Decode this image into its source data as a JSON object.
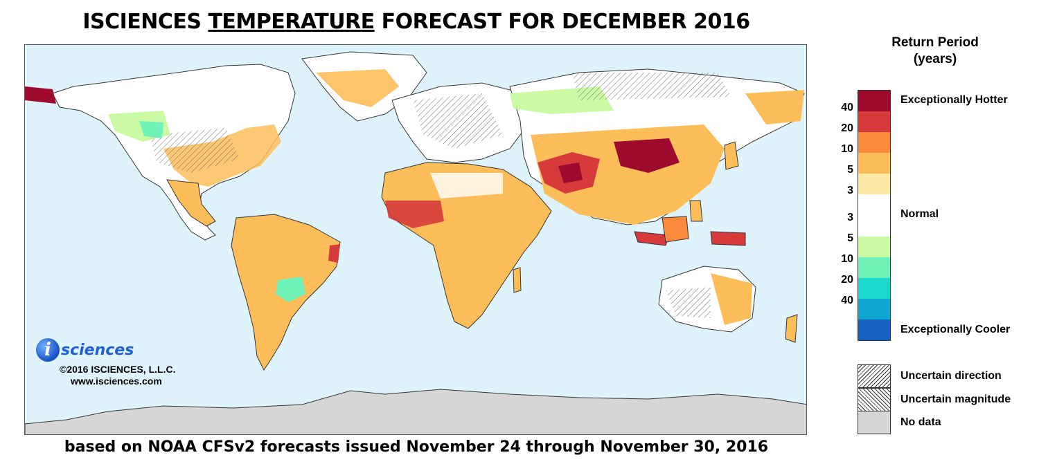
{
  "title": {
    "prefix": "ISCIENCES ",
    "emphasis": "TEMPERATURE",
    "suffix": " FORECAST FOR DECEMBER 2016"
  },
  "footer": "based on NOAA CFSv2 forecasts issued November 24 through November 30, 2016",
  "brand": {
    "logo_letter": "i",
    "logo_word": "sciences",
    "copyright": "©2016 ISCIENCES, L.L.C.",
    "url": "www.isciences.com"
  },
  "legend": {
    "title_line1": "Return Period",
    "title_line2": "(years)",
    "colors": [
      "#9e0a2e",
      "#d63a3a",
      "#fb8a3c",
      "#fdbe5a",
      "#fde8a6",
      "#ffffff",
      "#ffffff",
      "#cafaa4",
      "#6ef2b8",
      "#18d9cc",
      "#0ea6cf",
      "#1660c2"
    ],
    "ticks": [
      "40",
      "20",
      "10",
      "5",
      "3",
      "3",
      "5",
      "10",
      "20",
      "40"
    ],
    "label_hotter": "Exceptionally Hotter",
    "label_normal": "Normal",
    "label_cooler": "Exceptionally Cooler",
    "label_uncertain_direction": "Uncertain direction",
    "label_uncertain_magnitude": "Uncertain magnitude",
    "label_no_data": "No data"
  },
  "map_colors": {
    "ocean": "#dff3fd",
    "land_normal": "#ffffff",
    "border": "#333333",
    "no_data": "#d6d6d6"
  }
}
